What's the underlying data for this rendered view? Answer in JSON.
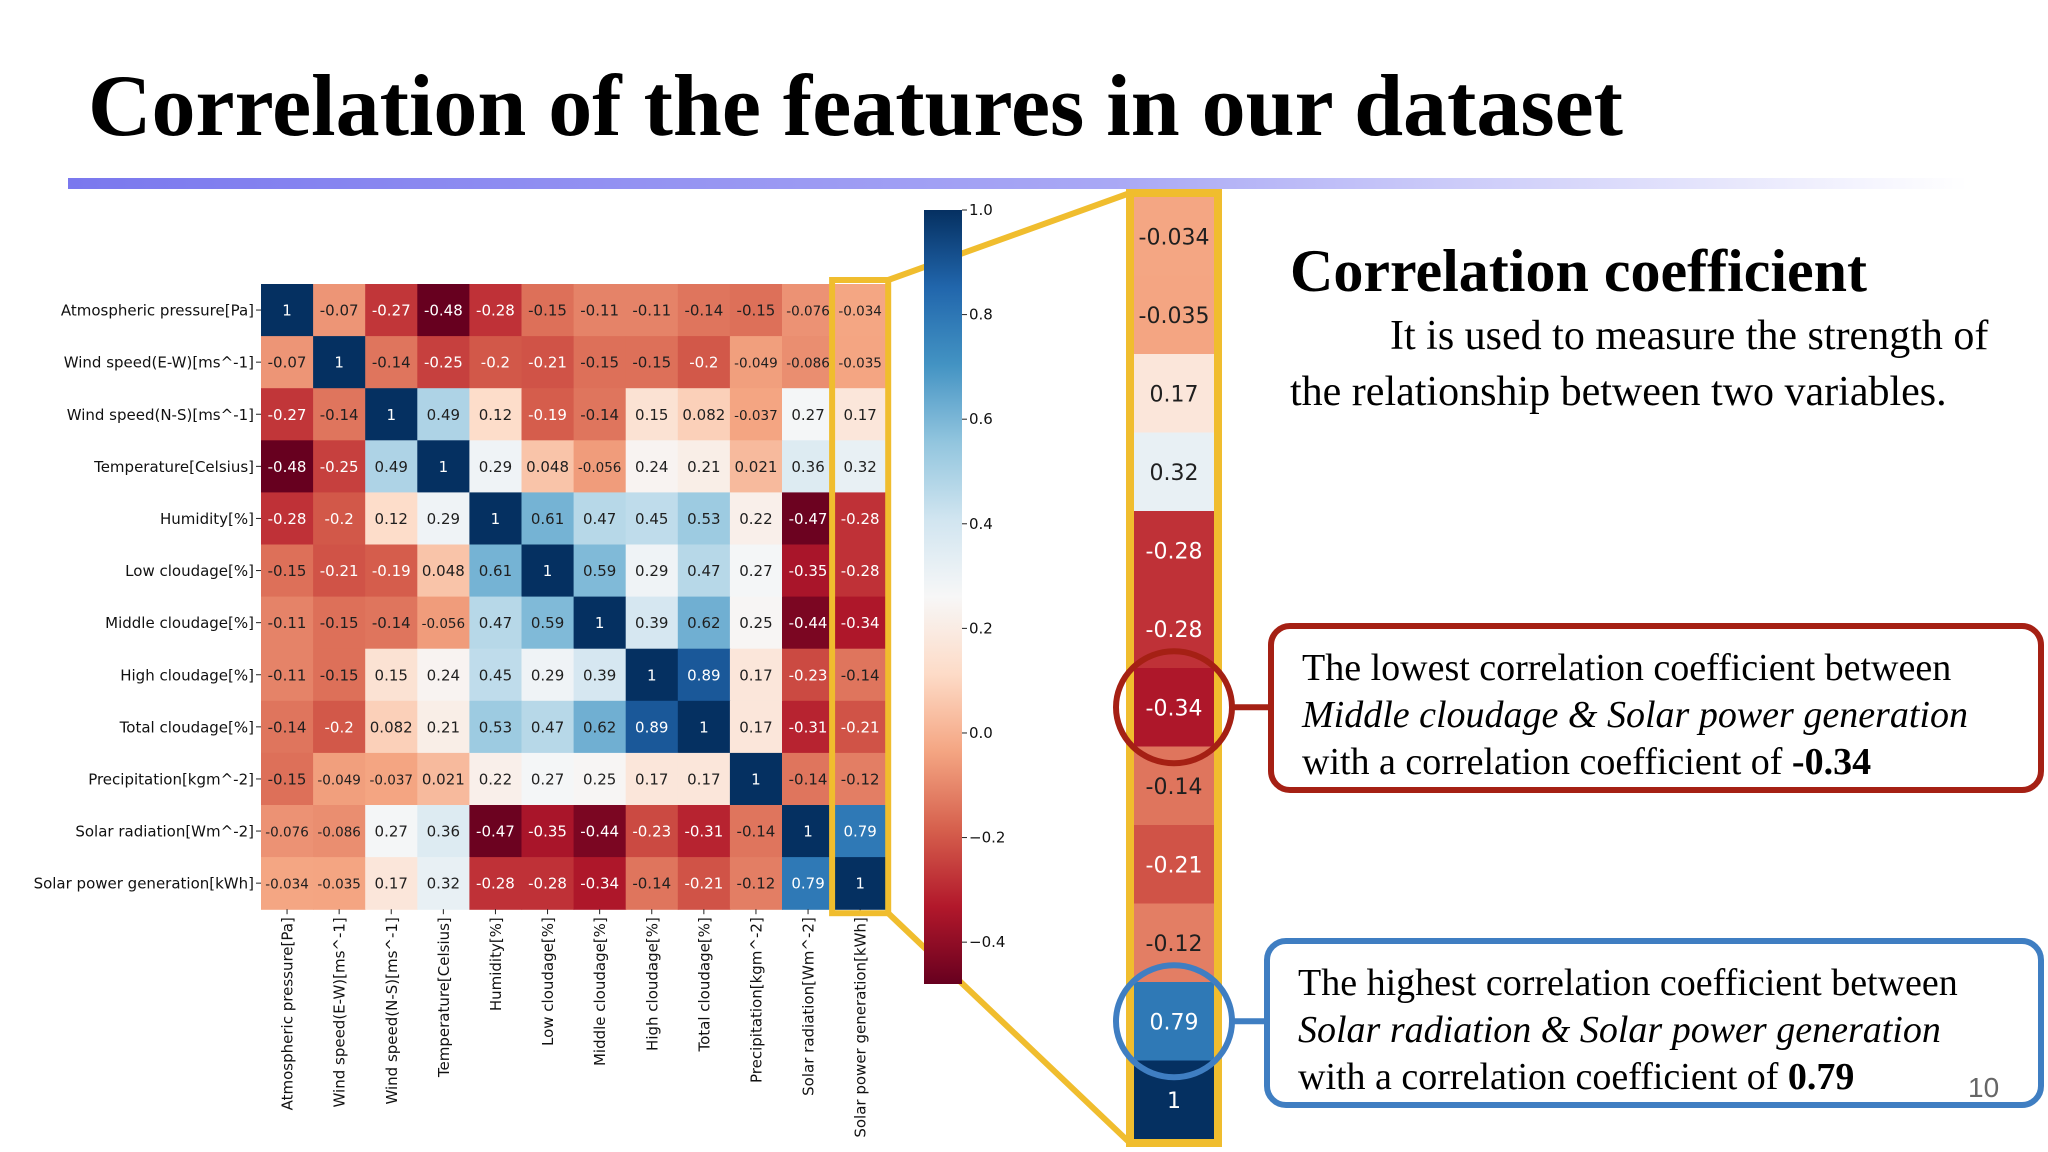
{
  "slide": {
    "title": "Correlation of the features in our dataset",
    "page_number": "10",
    "accent_color": "#7a78ee"
  },
  "explanation": {
    "heading": "Correlation coefficient",
    "description": "It is used to measure the strength of the relationship between two variables."
  },
  "callouts": {
    "lowest": {
      "prefix": "The lowest correlation coefficient between",
      "pair": "Middle cloudage & Solar power generation",
      "suffix": "with a correlation coefficient of",
      "value": "-0.34",
      "color": "#a52014"
    },
    "highest": {
      "prefix": "The highest correlation coefficient between",
      "pair": "Solar radiation & Solar power generation",
      "suffix": "with a correlation coefficient of",
      "value": "0.79",
      "color": "#3f7ec2"
    }
  },
  "chart_data": [
    {
      "type": "heatmap",
      "title": "",
      "labels": [
        "Atmospheric pressure[Pa]",
        "Wind speed(E-W)[ms^-1]",
        "Wind speed(N-S)[ms^-1]",
        "Temperature[Celsius]",
        "Humidity[%]",
        "Low cloudage[%]",
        "Middle cloudage[%]",
        "High cloudage[%]",
        "Total cloudage[%]",
        "Precipitation[kgm^-2]",
        "Solar radiation[Wm^-2]",
        "Solar power generation[kWh]"
      ],
      "matrix": [
        [
          "1",
          "-0.07",
          "-0.27",
          "-0.48",
          "-0.28",
          "-0.15",
          "-0.11",
          "-0.11",
          "-0.14",
          "-0.15",
          "-0.076",
          "-0.034"
        ],
        [
          "-0.07",
          "1",
          "-0.14",
          "-0.25",
          "-0.2",
          "-0.21",
          "-0.15",
          "-0.15",
          "-0.2",
          "-0.049",
          "-0.086",
          "-0.035"
        ],
        [
          "-0.27",
          "-0.14",
          "1",
          "0.49",
          "0.12",
          "-0.19",
          "-0.14",
          "0.15",
          "0.082",
          "-0.037",
          "0.27",
          "0.17"
        ],
        [
          "-0.48",
          "-0.25",
          "0.49",
          "1",
          "0.29",
          "0.048",
          "-0.056",
          "0.24",
          "0.21",
          "0.021",
          "0.36",
          "0.32"
        ],
        [
          "-0.28",
          "-0.2",
          "0.12",
          "0.29",
          "1",
          "0.61",
          "0.47",
          "0.45",
          "0.53",
          "0.22",
          "-0.47",
          "-0.28"
        ],
        [
          "-0.15",
          "-0.21",
          "-0.19",
          "0.048",
          "0.61",
          "1",
          "0.59",
          "0.29",
          "0.47",
          "0.27",
          "-0.35",
          "-0.28"
        ],
        [
          "-0.11",
          "-0.15",
          "-0.14",
          "-0.056",
          "0.47",
          "0.59",
          "1",
          "0.39",
          "0.62",
          "0.25",
          "-0.44",
          "-0.34"
        ],
        [
          "-0.11",
          "-0.15",
          "0.15",
          "0.24",
          "0.45",
          "0.29",
          "0.39",
          "1",
          "0.89",
          "0.17",
          "-0.23",
          "-0.14"
        ],
        [
          "-0.14",
          "-0.2",
          "0.082",
          "0.21",
          "0.53",
          "0.47",
          "0.62",
          "0.89",
          "1",
          "0.17",
          "-0.31",
          "-0.21"
        ],
        [
          "-0.15",
          "-0.049",
          "-0.037",
          "0.021",
          "0.22",
          "0.27",
          "0.25",
          "0.17",
          "0.17",
          "1",
          "-0.14",
          "-0.12"
        ],
        [
          "-0.076",
          "-0.086",
          "0.27",
          "0.36",
          "-0.47",
          "-0.35",
          "-0.44",
          "-0.23",
          "-0.31",
          "-0.14",
          "1",
          "0.79"
        ],
        [
          "-0.034",
          "-0.035",
          "0.17",
          "0.32",
          "-0.28",
          "-0.28",
          "-0.34",
          "-0.14",
          "-0.21",
          "-0.12",
          "0.79",
          "1"
        ]
      ],
      "colorbar": {
        "ticks": [
          "1.0",
          "0.8",
          "0.6",
          "0.4",
          "0.2",
          "0.0",
          "−0.2",
          "−0.4"
        ],
        "range": [
          -0.48,
          1.0
        ]
      },
      "highlighted_column": "Solar power generation[kWh]",
      "colormap": "RdBu"
    },
    {
      "type": "heatmap",
      "title": "",
      "values": [
        "-0.034",
        "-0.035",
        "0.17",
        "0.32",
        "-0.28",
        "-0.28",
        "-0.34",
        "-0.14",
        "-0.21",
        "-0.12",
        "0.79",
        "1"
      ],
      "circled": [
        "-0.34",
        "0.79"
      ]
    }
  ]
}
